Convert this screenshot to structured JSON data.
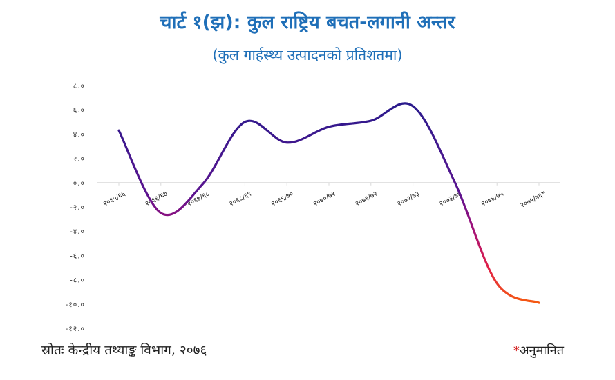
{
  "title": "चार्ट १(झ): कुल राष्ट्रिय बचत-लगानी अन्तर",
  "subtitle": "(कुल गार्हस्थ्य उत्पादनको प्रतिशतमा)",
  "source_note": "स्रोतः केन्द्रीय तथ्याङ्क विभाग, २०७६",
  "footnote": {
    "marker": "*",
    "text": "अनुमानित"
  },
  "colors": {
    "title": "#1f6fb8",
    "line_start": "#2a1a8c",
    "line_end": "#f55a10",
    "axis": "#d9d9d9"
  },
  "chart_data": {
    "type": "line",
    "title": "चार्ट १(झ): कुल राष्ट्रिय बचत-लगानी अन्तर",
    "subtitle": "(कुल गार्हस्थ्य उत्पादनको प्रतिशतमा)",
    "xlabel": "",
    "ylabel": "",
    "ylim": [
      -12,
      8
    ],
    "yticks": [
      8,
      6,
      4,
      2,
      0,
      -2,
      -4,
      -6,
      -8,
      -10,
      -12
    ],
    "ytick_labels": [
      "८.०",
      "६.०",
      "४.०",
      "२.०",
      "०.०",
      "-२.०",
      "-४.०",
      "-६.०",
      "-८.०",
      "-१०.०",
      "-१२.०"
    ],
    "categories": [
      "२०६५/६६",
      "२०६६/६७",
      "२०६७/६८",
      "२०६८/६९",
      "२०६९/७०",
      "२०७०/७१",
      "२०७१/७२",
      "२०७२/७३",
      "२०७३/७४",
      "२०७४/७५",
      "२०७५/७६*"
    ],
    "series": [
      {
        "values": [
          4.3,
          -2.5,
          -0.1,
          5.0,
          3.3,
          4.6,
          5.1,
          6.3,
          0.0,
          -8.3,
          -9.9
        ]
      }
    ],
    "grid": false,
    "legend": "none"
  }
}
